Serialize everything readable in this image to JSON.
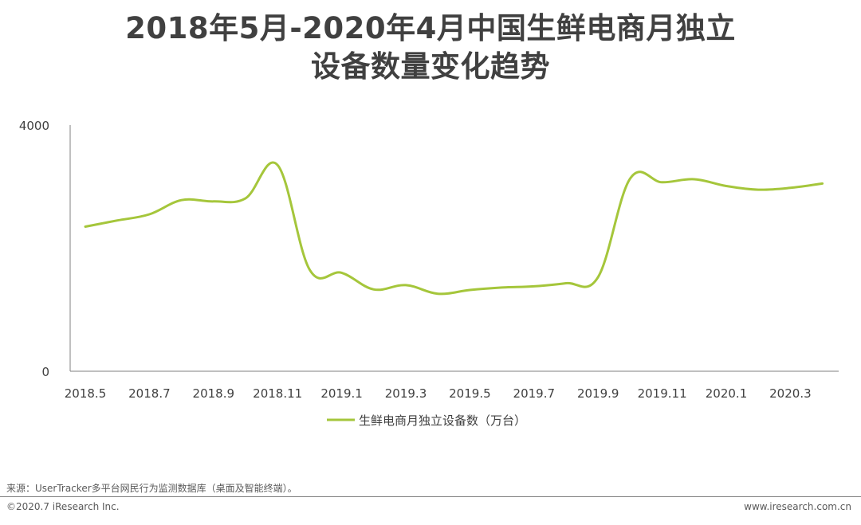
{
  "title": {
    "line1": "2018年5月-2020年4月中国生鲜电商月独立",
    "line2": "设备数量变化趋势"
  },
  "chart_data": {
    "type": "line",
    "title": "2018年5月-2020年4月中国生鲜电商月独立设备数量变化趋势",
    "xlabel": "",
    "ylabel": "",
    "ylim": [
      0,
      4000
    ],
    "yticks": [
      "0",
      "4000"
    ],
    "x_tick_labels": [
      "2018.5",
      "2018.7",
      "2018.9",
      "2018.11",
      "2019.1",
      "2019.3",
      "2019.5",
      "2019.7",
      "2019.9",
      "2019.11",
      "2020.1",
      "2020.3"
    ],
    "categories": [
      "2018.5",
      "2018.6",
      "2018.7",
      "2018.8",
      "2018.9",
      "2018.10",
      "2018.11",
      "2018.12",
      "2019.1",
      "2019.2",
      "2019.3",
      "2019.4",
      "2019.5",
      "2019.6",
      "2019.7",
      "2019.8",
      "2019.9",
      "2019.10",
      "2019.11",
      "2019.12",
      "2020.1",
      "2020.2",
      "2020.3",
      "2020.4"
    ],
    "series": [
      {
        "name": "生鲜电商月独立设备数（万台）",
        "color": "#a5c63b",
        "values": [
          2350,
          2450,
          2550,
          2780,
          2760,
          2810,
          3350,
          1650,
          1600,
          1330,
          1400,
          1260,
          1320,
          1360,
          1380,
          1430,
          1530,
          3130,
          3070,
          3120,
          3010,
          2950,
          2980,
          3050
        ]
      }
    ],
    "legend": "bottom",
    "grid": false
  },
  "footer": {
    "source": "来源：UserTracker多平台网民行为监测数据库（桌面及智能终端）。",
    "copyright": "©2020.7 iResearch Inc.",
    "website": "www.iresearch.com.cn"
  }
}
